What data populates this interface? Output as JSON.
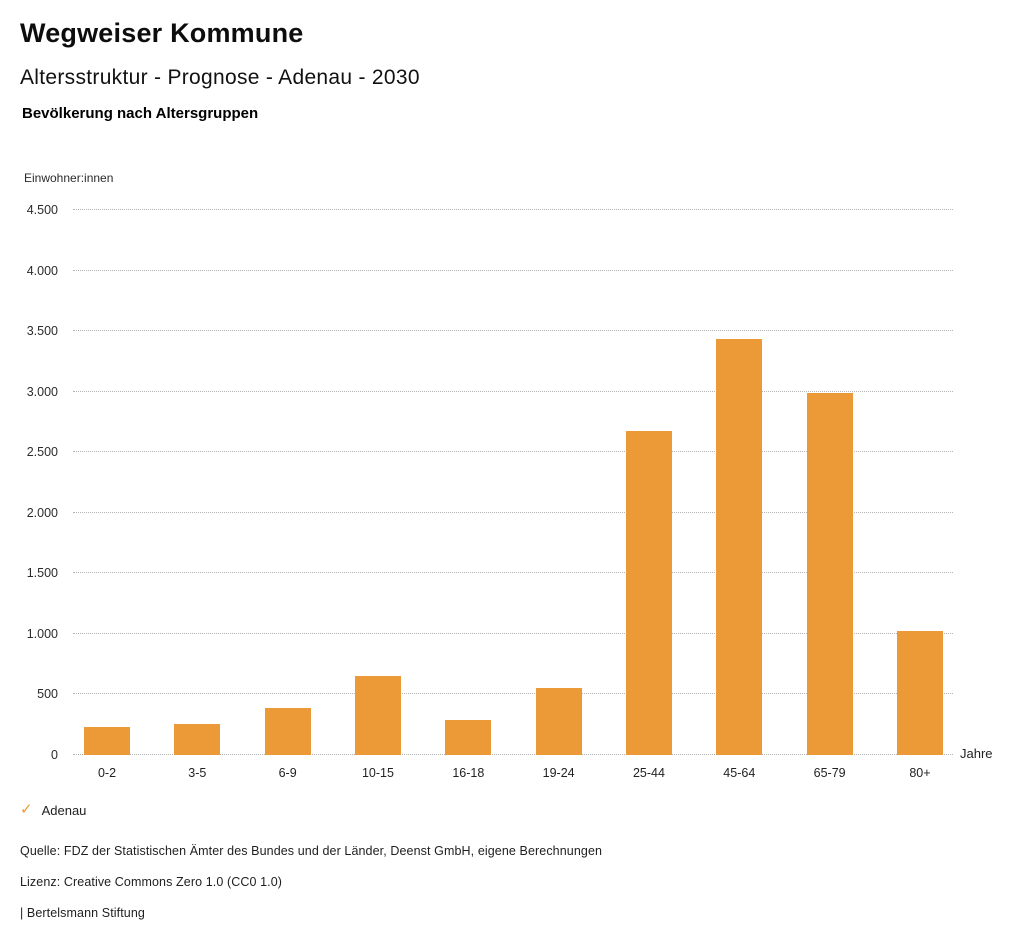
{
  "header": {
    "title": "Wegweiser Kommune",
    "subtitle": "Altersstruktur - Prognose - Adenau - 2030",
    "chart_heading": "Bevölkerung nach Altersgruppen"
  },
  "chart_data": {
    "type": "bar",
    "title": "Bevölkerung nach Altersgruppen",
    "series_name": "Adenau",
    "categories": [
      "0-2",
      "3-5",
      "6-9",
      "10-15",
      "16-18",
      "19-24",
      "25-44",
      "45-64",
      "65-79",
      "80+"
    ],
    "values": [
      235,
      260,
      390,
      650,
      290,
      555,
      2675,
      3435,
      2985,
      1025
    ],
    "xlabel": "Jahre",
    "ylabel": "Einwohner:innen",
    "ylim": [
      0,
      4500
    ],
    "yticks": [
      0,
      500,
      1000,
      1500,
      2000,
      2500,
      3000,
      3500,
      4000,
      4500
    ],
    "ytick_labels": [
      "0",
      "500",
      "1.000",
      "1.500",
      "2.000",
      "2.500",
      "3.000",
      "3.500",
      "4.000",
      "4.500"
    ],
    "grid": "horizontal-dotted",
    "legend_position": "bottom-left",
    "bar_color": "#EC9A38",
    "grid_color": "#b3b3b3"
  },
  "legend": {
    "marker_glyph": "✓",
    "marker_color": "#EC9A38",
    "label": "Adenau"
  },
  "footer": {
    "source": "Quelle: FDZ der Statistischen Ämter des Bundes und der Länder, Deenst GmbH, eigene Berechnungen",
    "license": "Lizenz: Creative Commons Zero 1.0 (CC0 1.0)",
    "attribution": "| Bertelsmann Stiftung"
  }
}
